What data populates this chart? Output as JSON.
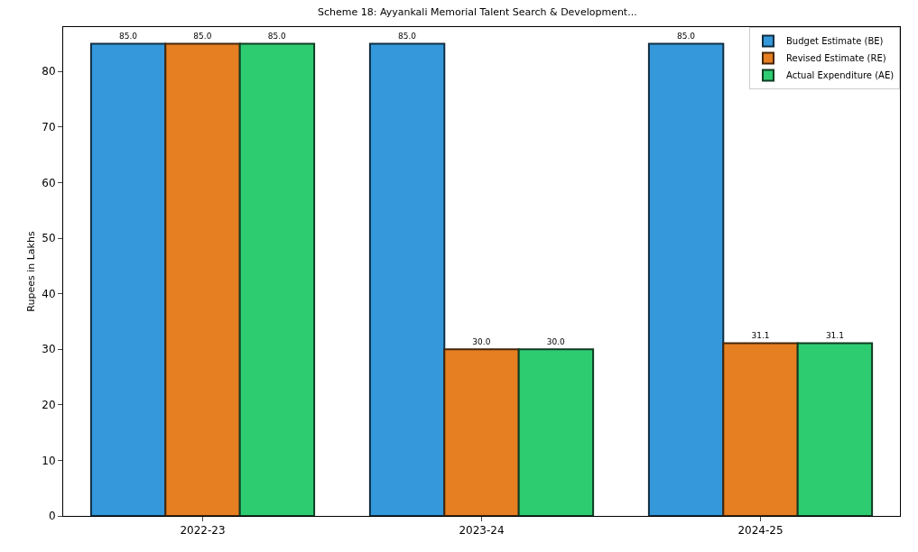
{
  "chart_data": {
    "type": "bar",
    "title": "Scheme 18: Ayyankali Memorial Talent Search & Development...",
    "ylabel": "Rupees in Lakhs",
    "categories": [
      "2022-23",
      "2023-24",
      "2024-25"
    ],
    "series": [
      {
        "name": "Budget Estimate (BE)",
        "color": "#3498db",
        "values": [
          85,
          85,
          85
        ],
        "value_labels": [
          "85.0",
          "85.0",
          "85.0"
        ]
      },
      {
        "name": "Revised Estimate (RE)",
        "color": "#e67e22",
        "values": [
          85,
          30,
          31.1
        ],
        "value_labels": [
          "85.0",
          "30.0",
          "31.1"
        ]
      },
      {
        "name": "Actual Expenditure (AE)",
        "color": "#2ecc71",
        "values": [
          85,
          30,
          31.1
        ],
        "value_labels": [
          "85.0",
          "30.0",
          "31.1"
        ]
      }
    ],
    "ylim": [
      0,
      88
    ],
    "yticks": [
      0,
      10,
      20,
      30,
      40,
      50,
      60,
      70,
      80
    ],
    "grid": false,
    "legend": "top right"
  }
}
